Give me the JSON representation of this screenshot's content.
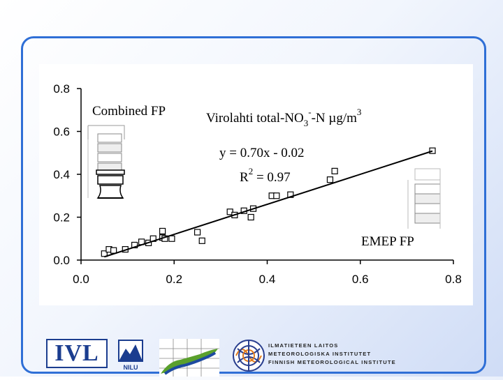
{
  "chart_data": {
    "type": "scatter",
    "title": "Virolahti total-NO3-N µg/m3",
    "title_parts": {
      "a": "Virolahti total-NO",
      "sub": "3",
      "sup": "-",
      "b": "-N µg/m",
      "sup2": "3"
    },
    "x_label": "EMEP FP",
    "y_label": "Combined FP",
    "equation": "y = 0.70x - 0.02",
    "r2_parts": {
      "a": "R",
      "sup": "2",
      "b": " = 0.97"
    },
    "xlim": [
      0,
      0.8
    ],
    "ylim": [
      0,
      0.8
    ],
    "x_ticks": [
      "0.0",
      "0.2",
      "0.4",
      "0.6",
      "0.8"
    ],
    "y_ticks": [
      "0.0",
      "0.2",
      "0.4",
      "0.6",
      "0.8"
    ],
    "grid": false,
    "marker": "open-square",
    "points": [
      {
        "x": 0.05,
        "y": 0.03
      },
      {
        "x": 0.06,
        "y": 0.05
      },
      {
        "x": 0.07,
        "y": 0.045
      },
      {
        "x": 0.095,
        "y": 0.05
      },
      {
        "x": 0.115,
        "y": 0.07
      },
      {
        "x": 0.13,
        "y": 0.085
      },
      {
        "x": 0.145,
        "y": 0.08
      },
      {
        "x": 0.155,
        "y": 0.1
      },
      {
        "x": 0.175,
        "y": 0.105
      },
      {
        "x": 0.175,
        "y": 0.135
      },
      {
        "x": 0.18,
        "y": 0.1
      },
      {
        "x": 0.195,
        "y": 0.1
      },
      {
        "x": 0.25,
        "y": 0.13
      },
      {
        "x": 0.26,
        "y": 0.09
      },
      {
        "x": 0.32,
        "y": 0.225
      },
      {
        "x": 0.33,
        "y": 0.21
      },
      {
        "x": 0.35,
        "y": 0.23
      },
      {
        "x": 0.365,
        "y": 0.2
      },
      {
        "x": 0.37,
        "y": 0.24
      },
      {
        "x": 0.41,
        "y": 0.3
      },
      {
        "x": 0.42,
        "y": 0.3
      },
      {
        "x": 0.45,
        "y": 0.305
      },
      {
        "x": 0.535,
        "y": 0.375
      },
      {
        "x": 0.545,
        "y": 0.415
      },
      {
        "x": 0.755,
        "y": 0.51
      }
    ],
    "fit_line": {
      "slope": 0.7,
      "intercept": -0.02,
      "x_range": [
        0.05,
        0.755
      ]
    }
  },
  "logos": {
    "ivl": "IVL",
    "nilu": "NILU",
    "fmi_lines": [
      "ILMATIETEEN LAITOS",
      "METEOROLOGISKA INSTITUTET",
      "FINNISH METEOROLOGICAL INSTITUTE"
    ]
  },
  "colors": {
    "frame": "#2f6fd6",
    "ivl": "#1b3d8f",
    "fmi_orange": "#e07a1c",
    "fmi_blue": "#2a3f8f",
    "fin_green": "#5aa02c",
    "fin_blue": "#1d4aa0"
  }
}
